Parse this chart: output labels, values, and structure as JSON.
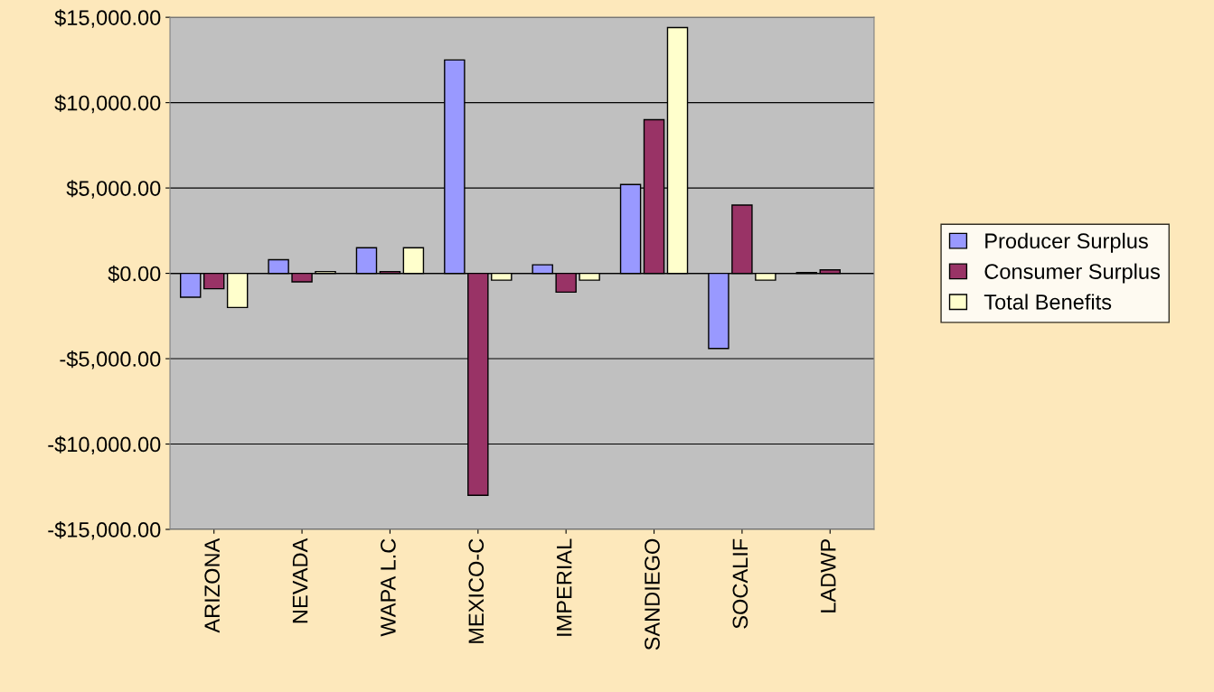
{
  "chart_data": {
    "type": "bar",
    "categories": [
      "ARIZONA",
      "NEVADA",
      "WAPA L.C",
      "MEXICO-C",
      "IMPERIAL",
      "SANDIEGO",
      "SOCALIF",
      "LADWP"
    ],
    "series": [
      {
        "name": "Producer Surplus",
        "color": "#9999ff",
        "values": [
          -1400,
          800,
          1500,
          12500,
          500,
          5200,
          -4400,
          50
        ]
      },
      {
        "name": "Consumer Surplus",
        "color": "#993366",
        "values": [
          -900,
          -500,
          100,
          -13000,
          -1100,
          9000,
          4000,
          200
        ]
      },
      {
        "name": "Total Benefits",
        "color": "#ffffcc",
        "values": [
          -2000,
          100,
          1500,
          -400,
          -400,
          14400,
          -400,
          null
        ]
      }
    ],
    "ylim": [
      -15000,
      15000
    ],
    "yticks": [
      {
        "value": -15000,
        "label": "-$15,000.00"
      },
      {
        "value": -10000,
        "label": "-$10,000.00"
      },
      {
        "value": -5000,
        "label": "-$5,000.00"
      },
      {
        "value": 0,
        "label": "$0.00"
      },
      {
        "value": 5000,
        "label": "$5,000.00"
      },
      {
        "value": 10000,
        "label": "$10,000.00"
      },
      {
        "value": 15000,
        "label": "$15,000.00"
      }
    ],
    "grid": "y",
    "legend": "right"
  }
}
